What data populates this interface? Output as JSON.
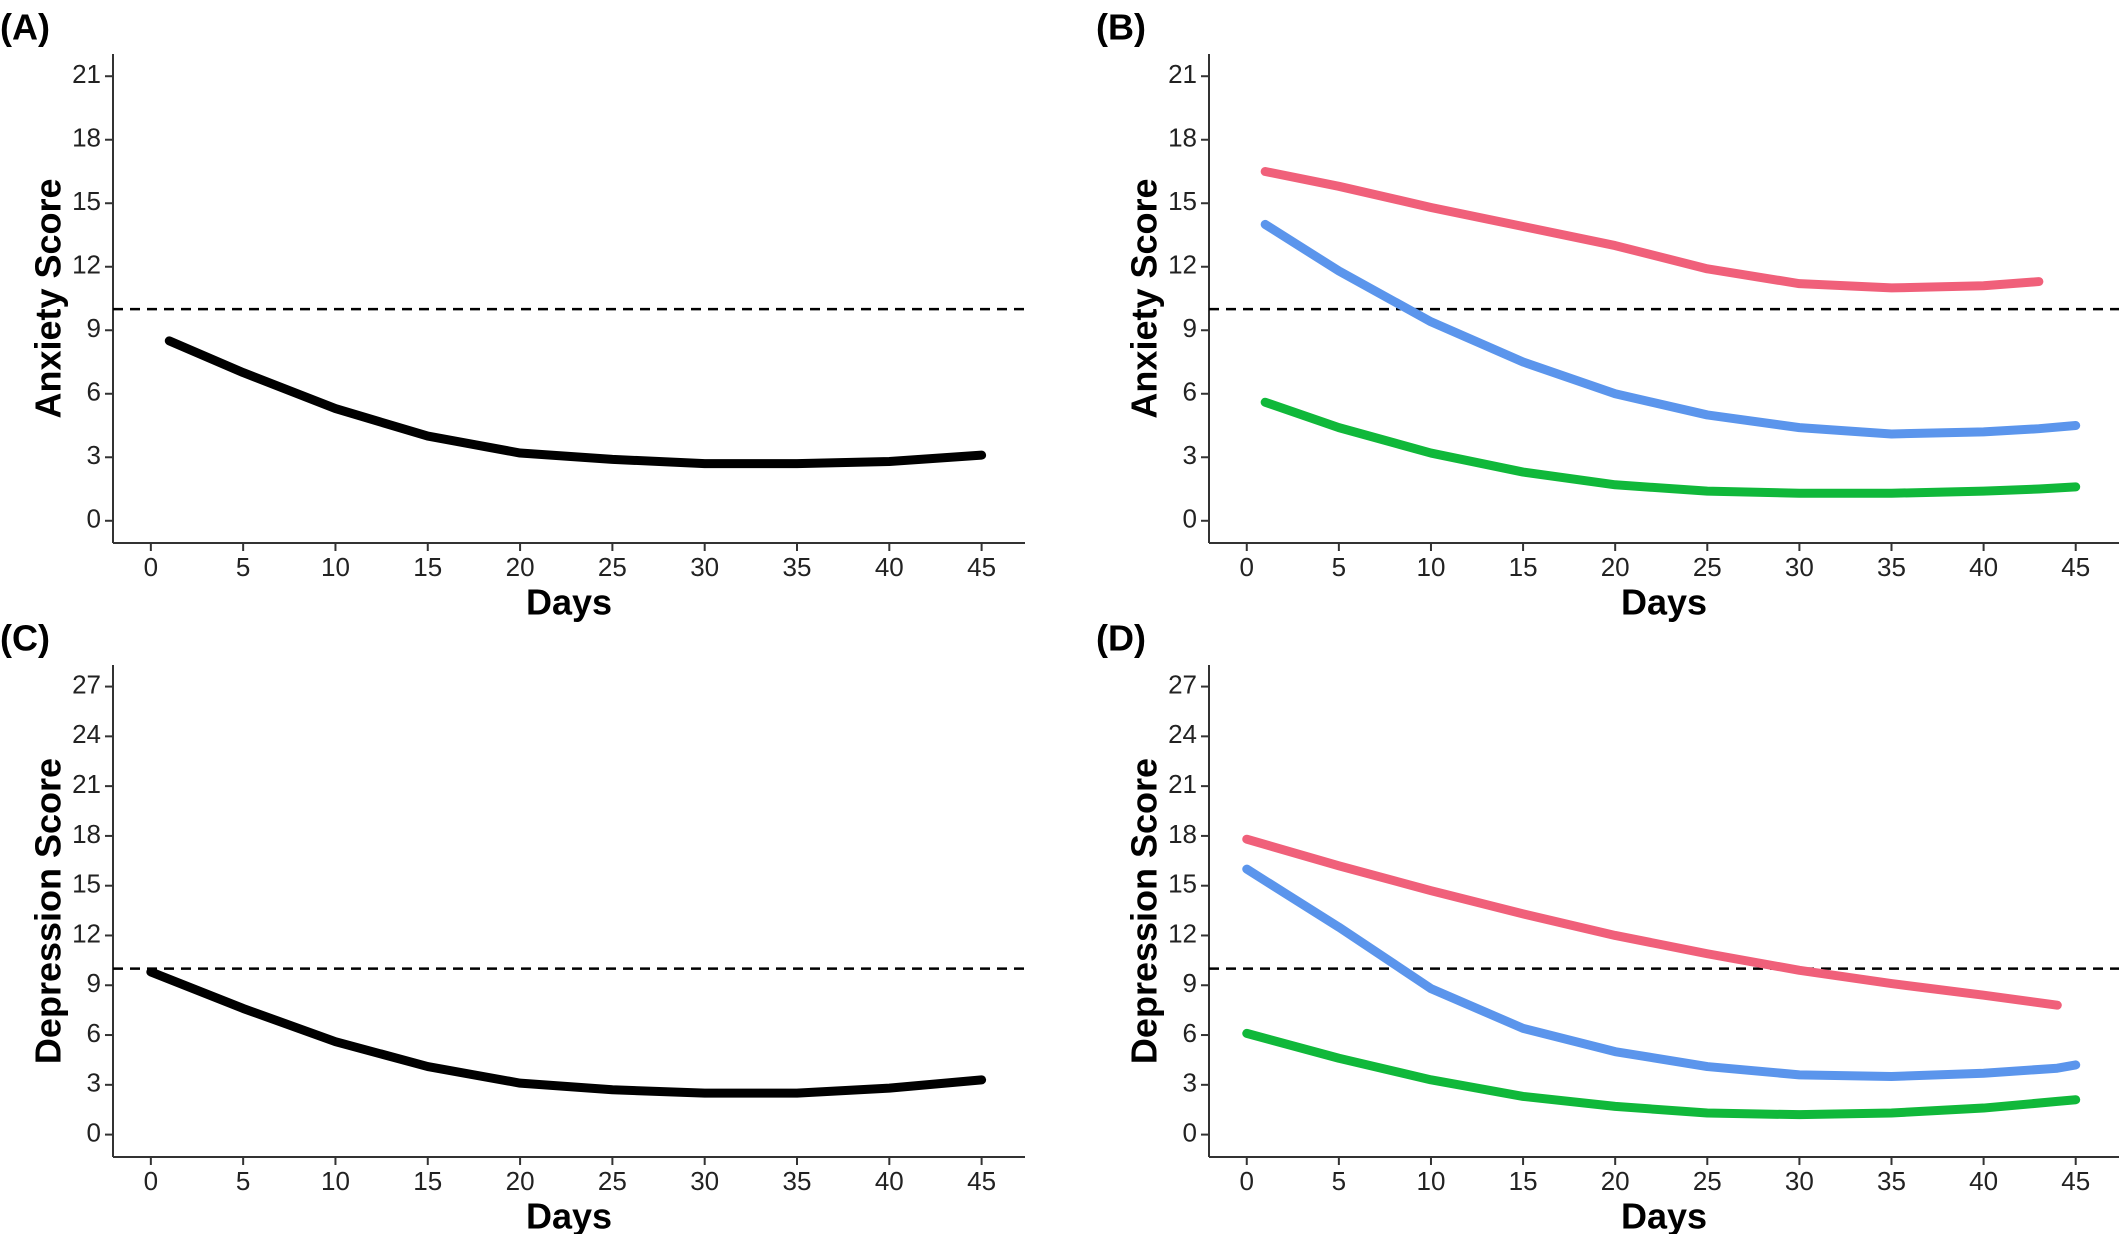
{
  "chart_data": [
    {
      "type": "line",
      "label": "(A)",
      "xlabel": "Days",
      "ylabel": "Anxiety Score",
      "x": [
        1,
        5,
        10,
        15,
        20,
        25,
        30,
        35,
        40,
        45
      ],
      "series": [
        {
          "color": "#000000",
          "values": [
            8.5,
            7.0,
            5.3,
            4.0,
            3.2,
            2.9,
            2.7,
            2.7,
            2.8,
            3.1
          ]
        }
      ],
      "hline": 10,
      "xlim": [
        -2.05,
        47.35
      ],
      "xticks": [
        0,
        5,
        10,
        15,
        20,
        25,
        30,
        35,
        40,
        45
      ],
      "ylim": [
        -1.05,
        22.05
      ],
      "yticks": [
        0,
        3,
        6,
        9,
        12,
        15,
        18,
        21
      ]
    },
    {
      "type": "line",
      "label": "(B)",
      "xlabel": "Days",
      "ylabel": "Anxiety Score",
      "x": [
        1,
        5,
        10,
        15,
        20,
        25,
        30,
        35,
        40,
        43,
        45
      ],
      "series": [
        {
          "color": "#f0607a",
          "values": [
            16.5,
            15.8,
            14.8,
            13.9,
            13.0,
            11.9,
            11.2,
            11.0,
            11.1,
            11.3,
            null
          ]
        },
        {
          "color": "#5b95ec",
          "values": [
            14.0,
            11.8,
            9.4,
            7.5,
            6.0,
            5.0,
            4.4,
            4.1,
            4.2,
            4.35,
            4.5
          ]
        },
        {
          "color": "#10b83a",
          "values": [
            5.6,
            4.4,
            3.2,
            2.3,
            1.7,
            1.4,
            1.3,
            1.3,
            1.4,
            1.5,
            1.6
          ]
        }
      ],
      "hline": 10,
      "xlim": [
        -2.05,
        47.35
      ],
      "xticks": [
        0,
        5,
        10,
        15,
        20,
        25,
        30,
        35,
        40,
        45
      ],
      "ylim": [
        -1.05,
        22.05
      ],
      "yticks": [
        0,
        3,
        6,
        9,
        12,
        15,
        18,
        21
      ]
    },
    {
      "type": "line",
      "label": "(C)",
      "xlabel": "Days",
      "ylabel": "Depression Score",
      "x": [
        0,
        5,
        10,
        15,
        20,
        25,
        30,
        35,
        40,
        45
      ],
      "series": [
        {
          "color": "#000000",
          "values": [
            9.8,
            7.6,
            5.6,
            4.1,
            3.1,
            2.7,
            2.5,
            2.5,
            2.8,
            3.3
          ]
        }
      ],
      "hline": 10,
      "xlim": [
        -2.05,
        47.35
      ],
      "xticks": [
        0,
        5,
        10,
        15,
        20,
        25,
        30,
        35,
        40,
        45
      ],
      "ylim": [
        -1.35,
        28.3
      ],
      "yticks": [
        0,
        3,
        6,
        9,
        12,
        15,
        18,
        21,
        24,
        27
      ]
    },
    {
      "type": "line",
      "label": "(D)",
      "xlabel": "Days",
      "ylabel": "Depression Score",
      "x": [
        0,
        5,
        10,
        15,
        20,
        25,
        30,
        35,
        40,
        44,
        45
      ],
      "series": [
        {
          "color": "#f0607a",
          "values": [
            17.8,
            16.2,
            14.7,
            13.3,
            12.0,
            10.9,
            9.9,
            9.1,
            8.4,
            7.8,
            null
          ]
        },
        {
          "color": "#5b95ec",
          "values": [
            16.0,
            12.5,
            8.8,
            6.4,
            5.0,
            4.1,
            3.6,
            3.5,
            3.7,
            4.0,
            4.2
          ]
        },
        {
          "color": "#10b83a",
          "values": [
            6.1,
            4.6,
            3.3,
            2.3,
            1.7,
            1.3,
            1.2,
            1.3,
            1.6,
            2.0,
            2.1
          ]
        }
      ],
      "hline": 10,
      "xlim": [
        -2.05,
        47.35
      ],
      "xticks": [
        0,
        5,
        10,
        15,
        20,
        25,
        30,
        35,
        40,
        45
      ],
      "ylim": [
        -1.35,
        28.3
      ],
      "yticks": [
        0,
        3,
        6,
        9,
        12,
        15,
        18,
        21,
        24,
        27
      ]
    }
  ]
}
